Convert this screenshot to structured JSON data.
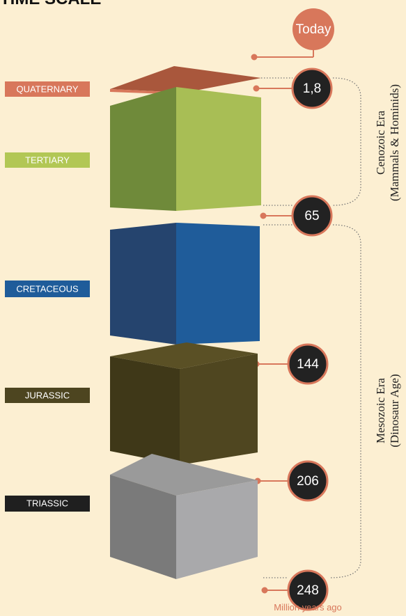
{
  "title": "TIME SCALE",
  "today": "Today",
  "periods": [
    "QUATERNARY",
    "TERTIARY",
    "CRETACEOUS",
    "JURASSIC",
    "TRIASSIC"
  ],
  "markers": [
    "1,8",
    "65",
    "144",
    "206",
    "248"
  ],
  "eras": [
    {
      "name": "Cenozoic Era",
      "note": "(Mammals & Hominids)"
    },
    {
      "name": "Mesozoic Era",
      "note": "(Dinosaur Age)"
    }
  ],
  "unit": "Million years ago"
}
